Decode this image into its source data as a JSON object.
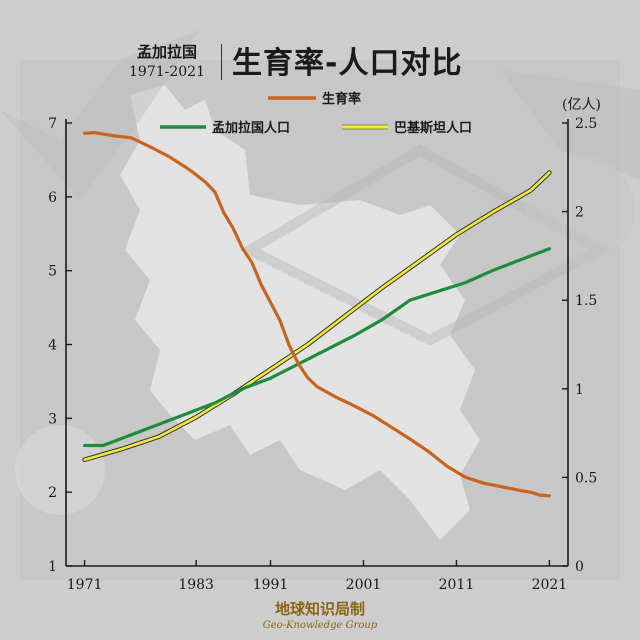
{
  "header": {
    "country": "孟加拉国",
    "years": "1971-2021",
    "title": "生育率-人口对比"
  },
  "footer": {
    "brand_cn": "地球知识局制",
    "brand_en": "Geo-Knowledge Group"
  },
  "colors": {
    "fertility": "#c8641e",
    "bangladesh": "#1e8c3c",
    "pakistan": "#f2ea3a",
    "axis": "#1a1a1a",
    "background": "#cfcfcf",
    "map": "#e6e6e6"
  },
  "chart_data": {
    "type": "line",
    "title": "生育率-人口对比",
    "x_ticks": [
      "1971",
      "1983",
      "1991",
      "2001",
      "2011",
      "2021"
    ],
    "xlim": [
      1969,
      2023
    ],
    "left_axis": {
      "ylim": [
        1,
        7
      ],
      "ticks": [
        "1",
        "2",
        "3",
        "4",
        "5",
        "6",
        "7"
      ]
    },
    "right_axis": {
      "unit_label": "(亿人)",
      "ylim": [
        0,
        2.5
      ],
      "ticks": [
        "0",
        "0.5",
        "1",
        "1.5",
        "2",
        "2.5"
      ]
    },
    "legend": {
      "placement": "top"
    },
    "series": [
      {
        "name": "生育率",
        "axis": "left",
        "color": "#c8641e",
        "x": [
          1971,
          1972,
          1974,
          1976,
          1978,
          1980,
          1982,
          1983,
          1984,
          1985,
          1986,
          1987,
          1988,
          1989,
          1990,
          1991,
          1992,
          1993,
          1994,
          1995,
          1996,
          1998,
          2000,
          2002,
          2004,
          2006,
          2008,
          2010,
          2012,
          2014,
          2016,
          2018,
          2019,
          2020,
          2021
        ],
        "values": [
          6.86,
          6.87,
          6.83,
          6.8,
          6.68,
          6.55,
          6.39,
          6.3,
          6.2,
          6.07,
          5.78,
          5.57,
          5.3,
          5.11,
          4.81,
          4.57,
          4.33,
          3.99,
          3.74,
          3.55,
          3.43,
          3.29,
          3.17,
          3.04,
          2.88,
          2.72,
          2.55,
          2.35,
          2.2,
          2.12,
          2.07,
          2.02,
          2.0,
          1.96,
          1.95
        ]
      },
      {
        "name": "孟加拉国人口",
        "axis": "right",
        "color": "#1e8c3c",
        "x": [
          1971,
          1973,
          1976,
          1979,
          1982,
          1985,
          1988,
          1991,
          1994,
          1997,
          2000,
          2003,
          2006,
          2009,
          2012,
          2015,
          2018,
          2021
        ],
        "values": [
          0.68,
          0.68,
          0.74,
          0.8,
          0.86,
          0.92,
          1.0,
          1.06,
          1.14,
          1.22,
          1.3,
          1.39,
          1.5,
          1.55,
          1.6,
          1.67,
          1.73,
          1.79
        ]
      },
      {
        "name": "巴基斯坦人口",
        "axis": "right",
        "color": "#f2ea3a",
        "x": [
          1971,
          1975,
          1979,
          1983,
          1987,
          1991,
          1995,
          1999,
          2003,
          2007,
          2011,
          2015,
          2019,
          2021
        ],
        "values": [
          0.6,
          0.66,
          0.73,
          0.84,
          0.97,
          1.11,
          1.25,
          1.41,
          1.57,
          1.72,
          1.87,
          2.0,
          2.12,
          2.22
        ]
      }
    ]
  }
}
